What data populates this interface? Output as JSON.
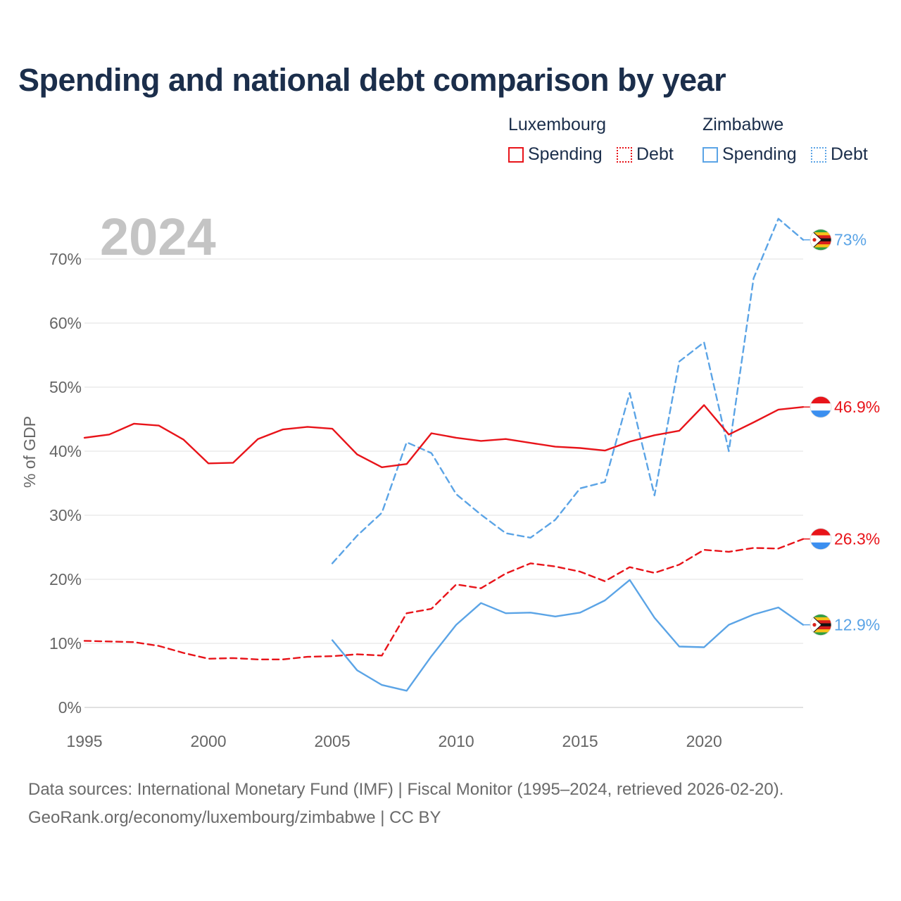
{
  "header": {
    "title": "Spending and national debt comparison by year"
  },
  "legend": {
    "groups": [
      {
        "country": "Luxembourg",
        "color": "#e8141a",
        "items": [
          {
            "label": "Spending",
            "style": "solid"
          },
          {
            "label": "Debt",
            "style": "dotted"
          }
        ]
      },
      {
        "country": "Zimbabwe",
        "color": "#5ba4e6",
        "items": [
          {
            "label": "Spending",
            "style": "solid"
          },
          {
            "label": "Debt",
            "style": "dotted"
          }
        ]
      }
    ]
  },
  "footer": {
    "source_line": "Data sources: International Monetary Fund (IMF) | Fiscal Monitor (1995–2024, retrieved 2026-02-20).",
    "credit_line": "GeoRank.org/economy/luxembourg/zimbabwe | CC BY"
  },
  "chart_data": {
    "type": "line",
    "title": "Spending and national debt comparison by year",
    "year_label": "2024",
    "ylabel": "% of GDP",
    "xlabel": "",
    "xlim": [
      1995,
      2024
    ],
    "ylim": [
      0,
      77
    ],
    "x_ticks": [
      1995,
      2000,
      2005,
      2010,
      2015,
      2020
    ],
    "y_ticks": [
      0,
      10,
      20,
      30,
      40,
      50,
      60,
      70
    ],
    "y_tick_labels": [
      "0%",
      "10%",
      "20%",
      "30%",
      "40%",
      "50%",
      "60%",
      "70%"
    ],
    "grid": true,
    "series": [
      {
        "name": "Luxembourg Spending",
        "country": "Luxembourg",
        "metric": "Spending",
        "color": "#e8141a",
        "dash": "solid",
        "flag": "luxembourg",
        "end_label": "46.9%",
        "x": [
          1995,
          1996,
          1997,
          1998,
          1999,
          2000,
          2001,
          2002,
          2003,
          2004,
          2005,
          2006,
          2007,
          2008,
          2009,
          2010,
          2011,
          2012,
          2013,
          2014,
          2015,
          2016,
          2017,
          2018,
          2019,
          2020,
          2021,
          2022,
          2023,
          2024
        ],
        "y": [
          42.1,
          42.6,
          44.3,
          44.0,
          41.8,
          38.1,
          38.2,
          41.9,
          43.4,
          43.8,
          43.5,
          39.5,
          37.5,
          38.0,
          42.8,
          42.1,
          41.6,
          41.9,
          41.3,
          40.7,
          40.5,
          40.1,
          41.5,
          42.5,
          43.2,
          47.2,
          42.6,
          44.5,
          46.5,
          46.9
        ]
      },
      {
        "name": "Luxembourg Debt",
        "country": "Luxembourg",
        "metric": "Debt",
        "color": "#e8141a",
        "dash": "dashed",
        "flag": "luxembourg",
        "end_label": "26.3%",
        "x": [
          1995,
          1996,
          1997,
          1998,
          1999,
          2000,
          2001,
          2002,
          2003,
          2004,
          2005,
          2006,
          2007,
          2008,
          2009,
          2010,
          2011,
          2012,
          2013,
          2014,
          2015,
          2016,
          2017,
          2018,
          2019,
          2020,
          2021,
          2022,
          2023,
          2024
        ],
        "y": [
          10.4,
          10.3,
          10.2,
          9.6,
          8.5,
          7.6,
          7.7,
          7.5,
          7.5,
          7.9,
          8.0,
          8.3,
          8.1,
          14.7,
          15.4,
          19.2,
          18.6,
          20.9,
          22.5,
          22.0,
          21.2,
          19.7,
          21.9,
          21.0,
          22.3,
          24.6,
          24.3,
          24.9,
          24.8,
          26.3
        ]
      },
      {
        "name": "Zimbabwe Spending",
        "country": "Zimbabwe",
        "metric": "Spending",
        "color": "#5ba4e6",
        "dash": "solid",
        "flag": "zimbabwe",
        "end_label": "12.9%",
        "x": [
          2005,
          2006,
          2007,
          2008,
          2009,
          2010,
          2011,
          2012,
          2013,
          2014,
          2015,
          2016,
          2017,
          2018,
          2019,
          2020,
          2021,
          2022,
          2023,
          2024
        ],
        "y": [
          10.5,
          5.8,
          3.5,
          2.6,
          8.0,
          12.9,
          16.3,
          14.7,
          14.8,
          14.2,
          14.8,
          16.7,
          19.9,
          14.0,
          9.5,
          9.4,
          12.9,
          14.5,
          15.6,
          12.9
        ]
      },
      {
        "name": "Zimbabwe Debt",
        "country": "Zimbabwe",
        "metric": "Debt",
        "color": "#5ba4e6",
        "dash": "dashed",
        "flag": "zimbabwe",
        "end_label": "73%",
        "x": [
          2005,
          2006,
          2007,
          2008,
          2009,
          2010,
          2011,
          2012,
          2013,
          2014,
          2015,
          2016,
          2017,
          2018,
          2019,
          2020,
          2021,
          2022,
          2023,
          2024
        ],
        "y": [
          22.5,
          26.8,
          30.4,
          41.4,
          39.7,
          33.3,
          30.1,
          27.2,
          26.5,
          29.3,
          34.2,
          35.2,
          49.1,
          33.1,
          54.0,
          57.0,
          40.0,
          67.0,
          76.3,
          73.0
        ]
      }
    ]
  }
}
